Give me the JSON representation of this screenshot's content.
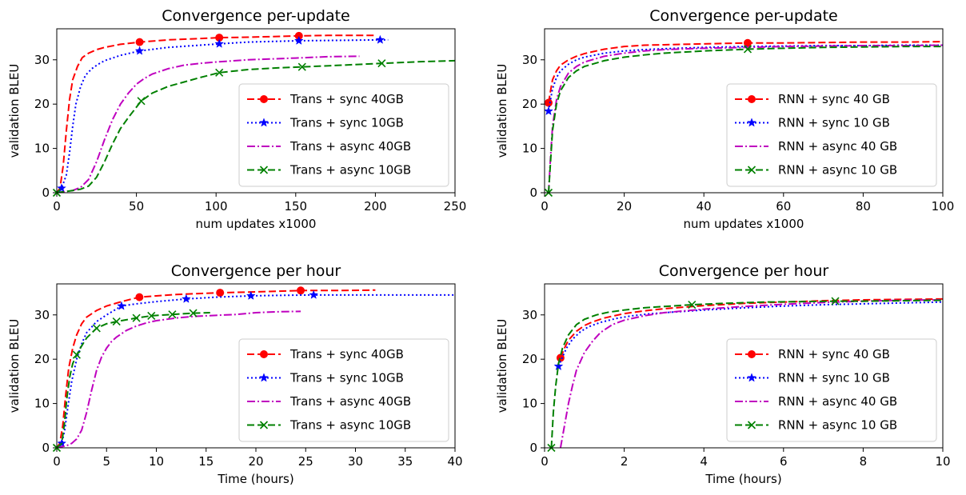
{
  "chart_data": [
    {
      "type": "line",
      "title": "Convergence per-update",
      "xlabel": "num updates x1000",
      "ylabel": "validation BLEU",
      "xlim": [
        0,
        250
      ],
      "ylim": [
        0,
        37
      ],
      "xticks": [
        0,
        50,
        100,
        150,
        200,
        250
      ],
      "yticks": [
        0,
        10,
        20,
        30
      ],
      "grid": false,
      "legend": "lower-right",
      "series": [
        {
          "name": "Trans + sync 40GB",
          "color": "#ff0000",
          "dash": "dashed",
          "marker": "circle",
          "x": [
            0,
            2,
            4,
            6,
            8,
            10,
            13,
            16,
            20,
            25,
            30,
            40,
            52,
            70,
            90,
            102,
            120,
            152,
            170,
            200
          ],
          "y": [
            0,
            1,
            6,
            14,
            21,
            25.5,
            28.5,
            30.5,
            31.5,
            32.3,
            32.8,
            33.5,
            34.0,
            34.5,
            34.8,
            35.0,
            35.1,
            35.4,
            35.5,
            35.5
          ],
          "markers_x": [
            52,
            102,
            152
          ],
          "markers_y": [
            34.0,
            35.0,
            35.4
          ]
        },
        {
          "name": "Trans + sync 10GB",
          "color": "#0000ff",
          "dash": "dotted",
          "marker": "star",
          "x": [
            0,
            3,
            6,
            8,
            10,
            12,
            15,
            18,
            22,
            26,
            30,
            40,
            52,
            70,
            90,
            102,
            120,
            152,
            180,
            203,
            208
          ],
          "y": [
            0,
            1,
            4,
            9,
            15,
            20,
            24,
            26.5,
            28,
            29,
            29.8,
            31,
            32.0,
            32.8,
            33.3,
            33.6,
            34.0,
            34.3,
            34.4,
            34.5,
            34.5
          ],
          "markers_x": [
            3,
            52,
            102,
            152,
            203
          ],
          "markers_y": [
            1,
            32.0,
            33.6,
            34.3,
            34.5
          ]
        },
        {
          "name": "Trans + async 40GB",
          "color": "#bf00bf",
          "dash": "dashdot",
          "marker": "none",
          "x": [
            0,
            10,
            15,
            20,
            25,
            30,
            35,
            40,
            45,
            50,
            55,
            60,
            70,
            80,
            90,
            100,
            120,
            150,
            170,
            190
          ],
          "y": [
            0,
            0.5,
            1.2,
            3,
            7,
            12,
            16.5,
            20,
            22.5,
            24.5,
            25.8,
            26.8,
            28,
            28.8,
            29.2,
            29.5,
            30.0,
            30.4,
            30.7,
            30.8
          ],
          "markers_x": [],
          "markers_y": []
        },
        {
          "name": "Trans + async 10GB",
          "color": "#008000",
          "dash": "dashed",
          "marker": "x",
          "x": [
            0,
            10,
            15,
            20,
            25,
            30,
            35,
            40,
            45,
            53,
            60,
            70,
            80,
            90,
            102,
            120,
            140,
            154,
            180,
            204,
            230,
            250
          ],
          "y": [
            0,
            0.5,
            0.8,
            1.5,
            3.5,
            7,
            11,
            14.5,
            17,
            20.7,
            22.5,
            24,
            25,
            26,
            27.1,
            27.8,
            28.2,
            28.4,
            28.8,
            29.2,
            29.6,
            29.8
          ],
          "markers_x": [
            0,
            53,
            102,
            154,
            204
          ],
          "markers_y": [
            0,
            20.7,
            27.1,
            28.4,
            29.2
          ]
        }
      ]
    },
    {
      "type": "line",
      "title": "Convergence per-update",
      "xlabel": "num updates x1000",
      "ylabel": "validation BLEU",
      "xlim": [
        0,
        100
      ],
      "ylim": [
        0,
        37
      ],
      "xticks": [
        0,
        20,
        40,
        60,
        80,
        100
      ],
      "yticks": [
        0,
        10,
        20,
        30
      ],
      "grid": false,
      "legend": "lower-right",
      "series": [
        {
          "name": "RNN + sync 40 GB",
          "color": "#ff0000",
          "dash": "dashed",
          "marker": "circle",
          "x": [
            1,
            1.5,
            2,
            3,
            4,
            6,
            8,
            10,
            15,
            20,
            25,
            30,
            40,
            51,
            60,
            70,
            80,
            90,
            100
          ],
          "y": [
            20.3,
            23,
            25.5,
            27.5,
            28.8,
            30,
            30.8,
            31.4,
            32.4,
            33,
            33.3,
            33.4,
            33.6,
            33.8,
            33.8,
            33.9,
            34,
            34,
            34.1
          ],
          "markers_x": [
            1,
            51
          ],
          "markers_y": [
            20.3,
            33.8
          ]
        },
        {
          "name": "RNN + sync 10 GB",
          "color": "#0000ff",
          "dash": "dotted",
          "marker": "star",
          "x": [
            1,
            1.5,
            2,
            3,
            4,
            6,
            8,
            10,
            15,
            20,
            25,
            30,
            40,
            51,
            60,
            70,
            80,
            90,
            100
          ],
          "y": [
            18.4,
            21,
            23.5,
            26,
            27.5,
            29,
            30,
            30.6,
            31.5,
            32,
            32.3,
            32.5,
            32.8,
            33,
            33.1,
            33.2,
            33.2,
            33.3,
            33.3
          ],
          "markers_x": [
            1
          ],
          "markers_y": [
            18.4
          ]
        },
        {
          "name": "RNN + async 40 GB",
          "color": "#bf00bf",
          "dash": "dashdot",
          "marker": "none",
          "x": [
            1,
            1.5,
            2,
            3,
            4,
            6,
            8,
            10,
            15,
            20,
            25,
            30,
            40,
            51,
            60,
            70,
            80,
            90,
            100
          ],
          "y": [
            0,
            8,
            15,
            21,
            24,
            27,
            28.5,
            29.5,
            30.8,
            31.5,
            32,
            32.3,
            32.6,
            32.8,
            33,
            33.1,
            33.2,
            33.2,
            33.3
          ],
          "markers_x": [],
          "markers_y": []
        },
        {
          "name": "RNN + async 10 GB",
          "color": "#008000",
          "dash": "dashed",
          "marker": "x",
          "x": [
            1,
            1.5,
            2,
            3,
            4,
            6,
            8,
            10,
            15,
            20,
            25,
            30,
            40,
            51,
            60,
            70,
            80,
            90,
            100
          ],
          "y": [
            0,
            7,
            14,
            20,
            23,
            26,
            27.5,
            28.5,
            29.8,
            30.6,
            31.1,
            31.5,
            32,
            32.4,
            32.6,
            32.8,
            32.9,
            33,
            33
          ],
          "markers_x": [
            1,
            51
          ],
          "markers_y": [
            0,
            32.4
          ]
        }
      ]
    },
    {
      "type": "line",
      "title": "Convergence per hour",
      "xlabel": "Time (hours)",
      "ylabel": "validation BLEU",
      "xlim": [
        0,
        40
      ],
      "ylim": [
        0,
        37
      ],
      "xticks": [
        0,
        5,
        10,
        15,
        20,
        25,
        30,
        35,
        40
      ],
      "yticks": [
        0,
        10,
        20,
        30
      ],
      "grid": false,
      "legend": "lower-right",
      "series": [
        {
          "name": "Trans + sync 40GB",
          "color": "#ff0000",
          "dash": "dashed",
          "marker": "circle",
          "x": [
            0,
            0.3,
            0.6,
            0.9,
            1.2,
            1.6,
            2,
            2.5,
            3,
            4,
            5,
            6.5,
            8.3,
            10,
            12,
            14,
            16.4,
            20,
            24.5,
            28,
            32
          ],
          "y": [
            0,
            1,
            5,
            12,
            18,
            22.5,
            25.5,
            28,
            29.5,
            31,
            32,
            33,
            34.0,
            34.3,
            34.6,
            34.8,
            35.0,
            35.2,
            35.5,
            35.5,
            35.6
          ],
          "markers_x": [
            8.3,
            16.4,
            24.5
          ],
          "markers_y": [
            34.0,
            35.0,
            35.5
          ]
        },
        {
          "name": "Trans + sync 10GB",
          "color": "#0000ff",
          "dash": "dotted",
          "marker": "star",
          "x": [
            0,
            0.5,
            0.8,
            1.1,
            1.5,
            2,
            2.5,
            3,
            4,
            5,
            6.5,
            8,
            10,
            13,
            16,
            19.5,
            22,
            25.8,
            30,
            35,
            40
          ],
          "y": [
            0,
            1,
            4,
            9,
            15,
            20,
            23.5,
            26,
            28.5,
            30,
            32.0,
            32.5,
            33,
            33.6,
            34,
            34.3,
            34.4,
            34.5,
            34.5,
            34.5,
            34.5
          ],
          "markers_x": [
            0.5,
            6.5,
            13,
            19.5,
            25.8
          ],
          "markers_y": [
            1,
            32.0,
            33.6,
            34.3,
            34.5
          ]
        },
        {
          "name": "Trans + async 40GB",
          "color": "#bf00bf",
          "dash": "dashdot",
          "marker": "none",
          "x": [
            0,
            1,
            1.5,
            2,
            2.5,
            3,
            3.5,
            4,
            4.5,
            5,
            5.5,
            6,
            7,
            8,
            9,
            10,
            12,
            14,
            16,
            18,
            20,
            22,
            24.5
          ],
          "y": [
            0,
            0.5,
            1,
            2,
            4,
            8,
            13,
            17.5,
            20.5,
            22.5,
            24,
            25,
            26.5,
            27.5,
            28.2,
            28.7,
            29.3,
            29.7,
            29.9,
            30.1,
            30.5,
            30.7,
            30.8
          ],
          "markers_x": [],
          "markers_y": []
        },
        {
          "name": "Trans + async 10GB",
          "color": "#008000",
          "dash": "dashed",
          "marker": "x",
          "x": [
            0,
            0.5,
            0.8,
            1,
            1.3,
            1.6,
            2,
            2.5,
            3,
            4,
            5,
            6,
            7,
            8,
            9.5,
            11.6,
            13.7,
            15.4
          ],
          "y": [
            0,
            1,
            6,
            11,
            16,
            19,
            21.0,
            23,
            24.8,
            27.0,
            28,
            28.5,
            28.9,
            29.3,
            29.8,
            30.1,
            30.4,
            30.5
          ],
          "markers_x": [
            0,
            2,
            4,
            6,
            8,
            9.5,
            11.6,
            13.7
          ],
          "markers_y": [
            0,
            21.0,
            27.0,
            28.5,
            29.3,
            29.8,
            30.1,
            30.4
          ]
        }
      ]
    },
    {
      "type": "line",
      "title": "Convergence per hour",
      "xlabel": "Time (hours)",
      "ylabel": "validation BLEU",
      "xlim": [
        0,
        10
      ],
      "ylim": [
        0,
        37
      ],
      "xticks": [
        0,
        2,
        4,
        6,
        8,
        10
      ],
      "yticks": [
        0,
        10,
        20,
        30
      ],
      "grid": false,
      "legend": "lower-right",
      "series": [
        {
          "name": "RNN + sync 40 GB",
          "color": "#ff0000",
          "dash": "dashed",
          "marker": "circle",
          "x": [
            0.4,
            0.5,
            0.6,
            0.8,
            1,
            1.2,
            1.5,
            2,
            2.5,
            3,
            4,
            5,
            6,
            7,
            8,
            9,
            10
          ],
          "y": [
            20.3,
            22.5,
            24.3,
            26.3,
            27.6,
            28.4,
            29.3,
            30.3,
            30.9,
            31.4,
            32.1,
            32.6,
            32.9,
            33.2,
            33.4,
            33.5,
            33.6
          ],
          "markers_x": [
            0.4
          ],
          "markers_y": [
            20.3
          ]
        },
        {
          "name": "RNN + sync 10 GB",
          "color": "#0000ff",
          "dash": "dotted",
          "marker": "star",
          "x": [
            0.35,
            0.45,
            0.55,
            0.7,
            0.9,
            1.1,
            1.4,
            1.8,
            2.2,
            2.6,
            3,
            4,
            5,
            6,
            7,
            8,
            9,
            10
          ],
          "y": [
            18.4,
            20.5,
            22.5,
            24.5,
            26.2,
            27.3,
            28.3,
            29.2,
            29.8,
            30.2,
            30.5,
            31.1,
            31.6,
            32,
            32.3,
            32.5,
            32.7,
            32.9
          ],
          "markers_x": [
            0.35
          ],
          "markers_y": [
            18.4
          ]
        },
        {
          "name": "RNN + async 40 GB",
          "color": "#bf00bf",
          "dash": "dashdot",
          "marker": "none",
          "x": [
            0.4,
            0.5,
            0.6,
            0.7,
            0.8,
            1,
            1.2,
            1.4,
            1.7,
            2,
            2.5,
            3,
            4,
            5,
            6,
            7,
            8,
            9,
            10
          ],
          "y": [
            0,
            5,
            10,
            14,
            17.5,
            21.5,
            24,
            26,
            27.8,
            28.8,
            29.8,
            30.5,
            31.3,
            31.9,
            32.4,
            32.8,
            33.1,
            33.3,
            33.4
          ],
          "markers_x": [],
          "markers_y": []
        },
        {
          "name": "RNN + async 10 GB",
          "color": "#008000",
          "dash": "dashed",
          "marker": "x",
          "x": [
            0.17,
            0.22,
            0.28,
            0.35,
            0.45,
            0.6,
            0.8,
            1,
            1.3,
            1.6,
            2,
            2.5,
            3,
            3.7,
            4.5,
            5.5,
            6.5,
            7.3,
            8,
            9,
            10
          ],
          "y": [
            0,
            8,
            14,
            19,
            22.5,
            25.5,
            27.8,
            29,
            30,
            30.6,
            31.1,
            31.6,
            31.9,
            32.3,
            32.6,
            32.9,
            33.0,
            33.1,
            33.1,
            33.2,
            33.3
          ],
          "markers_x": [
            0.17,
            3.7,
            7.3
          ],
          "markers_y": [
            0,
            32.3,
            33.1
          ]
        }
      ]
    }
  ]
}
